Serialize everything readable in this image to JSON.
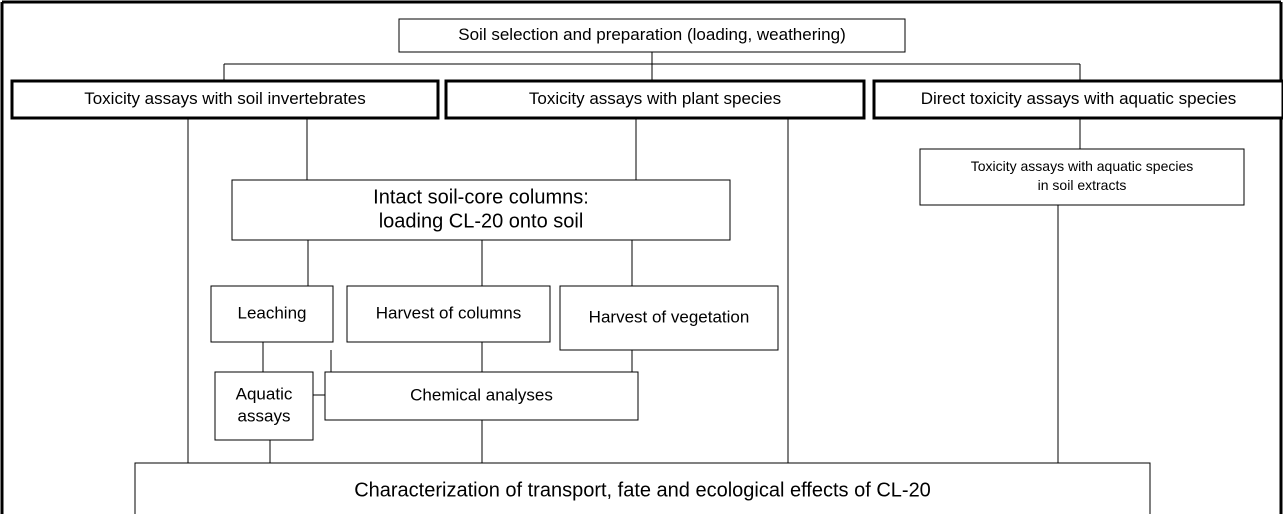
{
  "nodes": [
    {
      "lines": [
        "Soil selection and preparation (loading, weathering)"
      ]
    },
    {
      "lines": [
        "Toxicity assays with soil invertebrates"
      ]
    },
    {
      "lines": [
        "Toxicity assays with plant species"
      ]
    },
    {
      "lines": [
        "Direct toxicity assays with aquatic species"
      ]
    },
    {
      "lines": [
        "Toxicity assays with aquatic species",
        "in soil extracts"
      ]
    },
    {
      "lines": [
        "Intact soil-core columns:",
        "loading CL-20 onto soil"
      ]
    },
    {
      "lines": [
        "Leaching"
      ]
    },
    {
      "lines": [
        "Harvest of columns"
      ]
    },
    {
      "lines": [
        "Harvest of vegetation"
      ]
    },
    {
      "lines": [
        "Aquatic",
        "assays"
      ]
    },
    {
      "lines": [
        "Chemical analyses"
      ]
    },
    {
      "lines": [
        "Characterization of transport, fate and ecological effects of CL-20"
      ]
    }
  ]
}
